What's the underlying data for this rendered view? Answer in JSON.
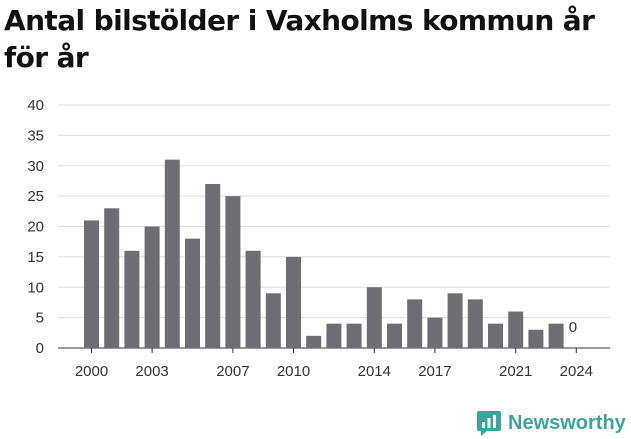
{
  "title": "Antal bilstölder i Vaxholms kommun år för år",
  "brand": {
    "name": "Newsworthy",
    "icon": "newsworthy-logo-icon",
    "color": "#3aa69b"
  },
  "colors": {
    "bar": "#6e6d73",
    "grid": "#dddddd",
    "axis": "#333333"
  },
  "chart_data": {
    "type": "bar",
    "title": "Antal bilstölder i Vaxholms kommun år för år",
    "xlabel": "",
    "ylabel": "",
    "ylim": [
      0,
      40
    ],
    "yticks": [
      0,
      5,
      10,
      15,
      20,
      25,
      30,
      35,
      40
    ],
    "grid": true,
    "legend": "none",
    "categories": [
      2000,
      2001,
      2002,
      2003,
      2004,
      2005,
      2006,
      2007,
      2008,
      2009,
      2010,
      2011,
      2012,
      2013,
      2014,
      2015,
      2016,
      2017,
      2018,
      2019,
      2020,
      2021,
      2022,
      2023,
      2024
    ],
    "xtick_labels": [
      2000,
      2003,
      2007,
      2010,
      2014,
      2017,
      2021,
      2024
    ],
    "values": [
      21,
      23,
      16,
      20,
      31,
      18,
      27,
      25,
      16,
      9,
      15,
      2,
      4,
      4,
      10,
      4,
      8,
      5,
      9,
      8,
      4,
      6,
      3,
      4,
      0
    ],
    "data_labels": [
      {
        "category": 2024,
        "text": "0"
      }
    ]
  }
}
